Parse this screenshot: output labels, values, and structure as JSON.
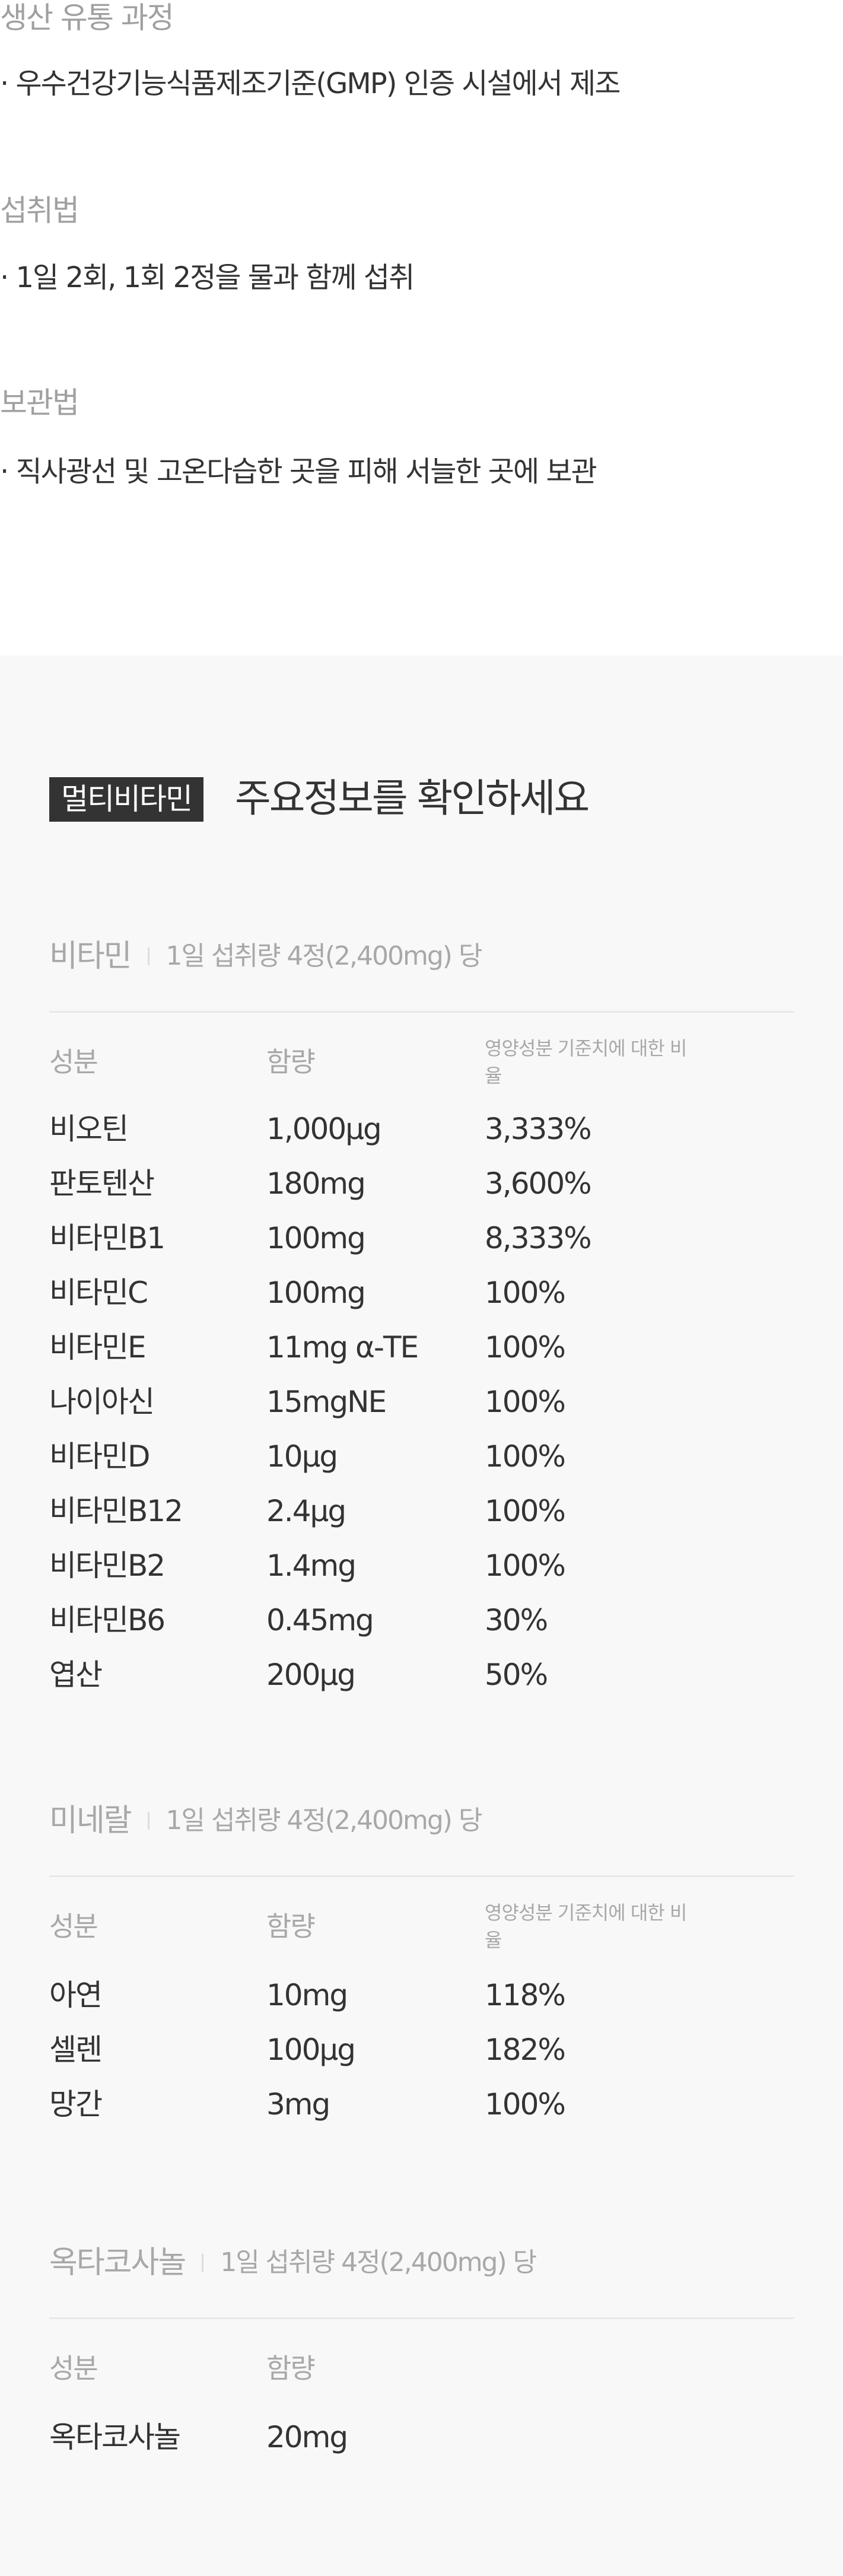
{
  "info": [
    {
      "heading": "생산 유통 과정",
      "text": "· 우수건강기능식품제조기준(GMP) 인증 시설에서 제조"
    },
    {
      "heading": "섭취법",
      "text": "· 1일 2회, 1회 2정을 물과 함께 섭취"
    },
    {
      "heading": "보관법",
      "text": "· 직사광선 및 고온다습한 곳을 피해 서늘한 곳에 보관"
    }
  ],
  "main": {
    "badge": "멀티비타민",
    "title": "주요정보를 확인하세요"
  },
  "sections": [
    {
      "name": "비타민",
      "serving": "1일 섭취량 4정(2,400mg) 당",
      "headers": [
        "성분",
        "함량",
        "영양성분 기준치에 대한 비율"
      ],
      "rows": [
        [
          "비오틴",
          "1,000μg",
          "3,333%"
        ],
        [
          "판토텐산",
          "180mg",
          "3,600%"
        ],
        [
          "비타민B1",
          "100mg",
          "8,333%"
        ],
        [
          "비타민C",
          "100mg",
          "100%"
        ],
        [
          "비타민E",
          "11mg α-TE",
          "100%"
        ],
        [
          "나이아신",
          "15mgNE",
          "100%"
        ],
        [
          "비타민D",
          "10μg",
          "100%"
        ],
        [
          "비타민B12",
          "2.4μg",
          "100%"
        ],
        [
          "비타민B2",
          "1.4mg",
          "100%"
        ],
        [
          "비타민B6",
          "0.45mg",
          "30%"
        ],
        [
          "엽산",
          "200μg",
          "50%"
        ]
      ]
    },
    {
      "name": "미네랄",
      "serving": "1일 섭취량 4정(2,400mg) 당",
      "headers": [
        "성분",
        "함량",
        "영양성분 기준치에 대한 비율"
      ],
      "rows": [
        [
          "아연",
          "10mg",
          "118%"
        ],
        [
          "셀렌",
          "100μg",
          "182%"
        ],
        [
          "망간",
          "3mg",
          "100%"
        ]
      ]
    },
    {
      "name": "옥타코사놀",
      "serving": "1일 섭취량 4정(2,400mg) 당",
      "headers": [
        "성분",
        "함량"
      ],
      "rows": [
        [
          "옥타코사놀",
          "20mg"
        ]
      ]
    }
  ]
}
